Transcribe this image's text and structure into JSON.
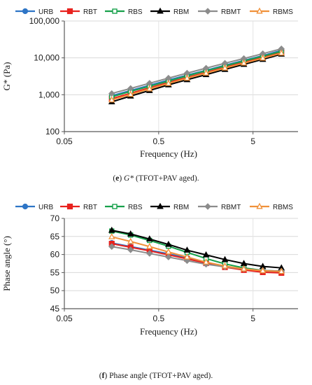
{
  "chart_data": [
    {
      "type": "line",
      "x_scale": "log",
      "y_scale": "log",
      "xlim": [
        0.05,
        15
      ],
      "ylim": [
        100,
        100000
      ],
      "x_tick_labels": [
        {
          "v": 0.05,
          "t": "0.05"
        },
        {
          "v": 0.5,
          "t": "0.5"
        },
        {
          "v": 5,
          "t": "5"
        }
      ],
      "y_tick_labels": [
        {
          "v": 100,
          "t": "100"
        },
        {
          "v": 1000,
          "t": "1,000"
        },
        {
          "v": 10000,
          "t": "10,000"
        },
        {
          "v": 100000,
          "t": "100,000"
        }
      ],
      "xlabel": "Frequency (Hz)",
      "ylabel": "G* (Pa)",
      "caption": {
        "letter": "e",
        "symbol": "G*",
        "rest": " (TFOT+PAV aged)."
      },
      "grid": true,
      "legend_placement": "top",
      "x": [
        0.159,
        0.252,
        0.4,
        0.635,
        1.0,
        1.59,
        2.52,
        4.0,
        6.35,
        10.0
      ],
      "series": [
        {
          "name": "URB",
          "color": "#2e75c6",
          "marker": "circle",
          "values": [
            940,
            1300,
            1800,
            2500,
            3400,
            4600,
            6300,
            8500,
            11500,
            16000
          ]
        },
        {
          "name": "RBT",
          "color": "#e8221e",
          "marker": "square-filled",
          "values": [
            780,
            1100,
            1540,
            2150,
            2950,
            4050,
            5550,
            7550,
            10300,
            14100
          ]
        },
        {
          "name": "RBS",
          "color": "#17a14b",
          "marker": "square-open",
          "values": [
            880,
            1230,
            1700,
            2350,
            3250,
            4450,
            6050,
            8200,
            11100,
            15100
          ]
        },
        {
          "name": "RBM",
          "color": "#000000",
          "marker": "triangle-filled",
          "values": [
            640,
            920,
            1300,
            1850,
            2550,
            3500,
            4850,
            6650,
            9100,
            12600
          ]
        },
        {
          "name": "RBMT",
          "color": "#8c8c8c",
          "marker": "diamond",
          "values": [
            1080,
            1480,
            2050,
            2820,
            3850,
            5250,
            7150,
            9600,
            13000,
            17600
          ]
        },
        {
          "name": "RBMS",
          "color": "#f0913a",
          "marker": "triangle-open",
          "values": [
            720,
            1020,
            1440,
            2020,
            2800,
            3850,
            5280,
            7200,
            9800,
            13400
          ]
        }
      ]
    },
    {
      "type": "line",
      "x_scale": "log",
      "y_scale": "linear",
      "xlim": [
        0.05,
        15
      ],
      "ylim": [
        45,
        70
      ],
      "x_tick_labels": [
        {
          "v": 0.05,
          "t": "0.05"
        },
        {
          "v": 0.5,
          "t": "0.5"
        },
        {
          "v": 5,
          "t": "5"
        }
      ],
      "y_tick_labels": [
        {
          "v": 45,
          "t": "45"
        },
        {
          "v": 50,
          "t": "50"
        },
        {
          "v": 55,
          "t": "55"
        },
        {
          "v": 60,
          "t": "60"
        },
        {
          "v": 65,
          "t": "65"
        },
        {
          "v": 70,
          "t": "70"
        }
      ],
      "xlabel": "Frequency (Hz)",
      "ylabel": "Phase angle (°)",
      "caption": {
        "letter": "f",
        "symbol": "",
        "rest": " Phase angle (TFOT+PAV aged)."
      },
      "grid": true,
      "legend_placement": "top",
      "x": [
        0.159,
        0.252,
        0.4,
        0.635,
        1.0,
        1.59,
        2.52,
        4.0,
        6.35,
        10.0
      ],
      "series": [
        {
          "name": "URB",
          "color": "#2e75c6",
          "marker": "circle",
          "values": [
            63.2,
            62.2,
            61.2,
            60.2,
            59.1,
            57.8,
            56.7,
            55.9,
            55.3,
            55.1
          ]
        },
        {
          "name": "RBT",
          "color": "#e8221e",
          "marker": "square-filled",
          "values": [
            63.0,
            62.0,
            61.0,
            59.9,
            58.8,
            57.6,
            56.5,
            55.7,
            55.1,
            54.9
          ]
        },
        {
          "name": "RBS",
          "color": "#17a14b",
          "marker": "square-open",
          "values": [
            66.5,
            65.4,
            63.9,
            62.3,
            60.6,
            58.9,
            57.4,
            56.3,
            55.6,
            55.4
          ]
        },
        {
          "name": "RBM",
          "color": "#000000",
          "marker": "triangle-filled",
          "values": [
            66.7,
            65.7,
            64.3,
            62.8,
            61.2,
            59.9,
            58.6,
            57.5,
            56.7,
            56.3
          ]
        },
        {
          "name": "RBMT",
          "color": "#8c8c8c",
          "marker": "diamond",
          "values": [
            62.2,
            61.3,
            60.3,
            59.3,
            58.3,
            57.3,
            56.6,
            56.0,
            55.6,
            55.4
          ]
        },
        {
          "name": "RBMS",
          "color": "#f0913a",
          "marker": "triangle-open",
          "values": [
            64.9,
            63.6,
            62.2,
            60.7,
            59.3,
            57.9,
            56.8,
            56.0,
            55.5,
            55.3
          ]
        }
      ]
    }
  ]
}
